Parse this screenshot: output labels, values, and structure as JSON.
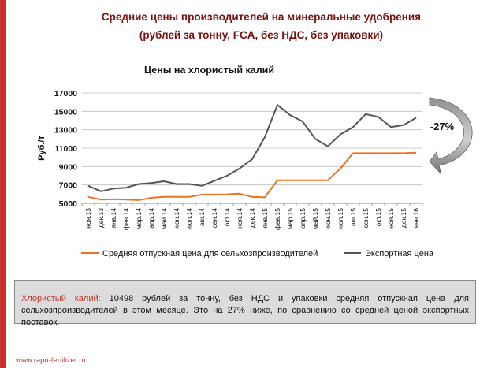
{
  "header": {
    "title_line1": "Средние цены производителей на минеральные удобрения",
    "title_line2": "(рублей за тонну, FCA, без НДС, без упаковки)"
  },
  "chart_data": {
    "type": "line",
    "title": "Цены на хлористый калий",
    "xlabel": "",
    "ylabel": "Руб./т",
    "ylim": [
      5000,
      17000
    ],
    "yticks": [
      5000,
      7000,
      9000,
      11000,
      13000,
      15000,
      17000
    ],
    "y_tick_labels": [
      "5000",
      "7000",
      "9000",
      "11000",
      "13000",
      "15000",
      "17000"
    ],
    "grid": true,
    "legend_position": "bottom",
    "categories": [
      "ноя.13",
      "дек.13",
      "янв.14",
      "фев.14",
      "мар.14",
      "апр.14",
      "май.14",
      "июн.14",
      "июл.14",
      "авг.14",
      "сен.14",
      "окт.14",
      "ноя.14",
      "дек.14",
      "янв.15",
      "фев.15",
      "мар.15",
      "апр.15",
      "май.15",
      "июн.15",
      "июл.15",
      "авг.15",
      "сен.15",
      "окт.15",
      "ноя.15",
      "дек.15",
      "янв.16"
    ],
    "series": [
      {
        "name": "Средняя отпускная цена для сельхозпроизводителей",
        "color": "#f07020",
        "values": [
          5700,
          5400,
          5450,
          5400,
          5350,
          5600,
          5700,
          5700,
          5700,
          5950,
          5950,
          5980,
          6050,
          5700,
          5650,
          7500,
          7500,
          7500,
          7500,
          7500,
          8800,
          10450,
          10450,
          10450,
          10450,
          10450,
          10500
        ]
      },
      {
        "name": "Экспортная цена",
        "color": "#555555",
        "values": [
          6900,
          6300,
          6600,
          6700,
          7100,
          7200,
          7400,
          7100,
          7100,
          6900,
          7450,
          8000,
          8800,
          9800,
          12200,
          15700,
          14600,
          13900,
          12000,
          11200,
          12500,
          13300,
          14700,
          14400,
          13300,
          13500,
          14300
        ]
      }
    ],
    "annotation": "-27%"
  },
  "note": {
    "highlight": "Хлористый калий:",
    "text": "10498 рублей за тонну, без НДС и упаковки средняя отпускная цена для сельхозпроизводителей в этом месяце. Это на 27% ниже, по сравнению со средней ценой экспортных поставок."
  },
  "footer": {
    "url": "www.rapu-fertilizer.ru"
  }
}
